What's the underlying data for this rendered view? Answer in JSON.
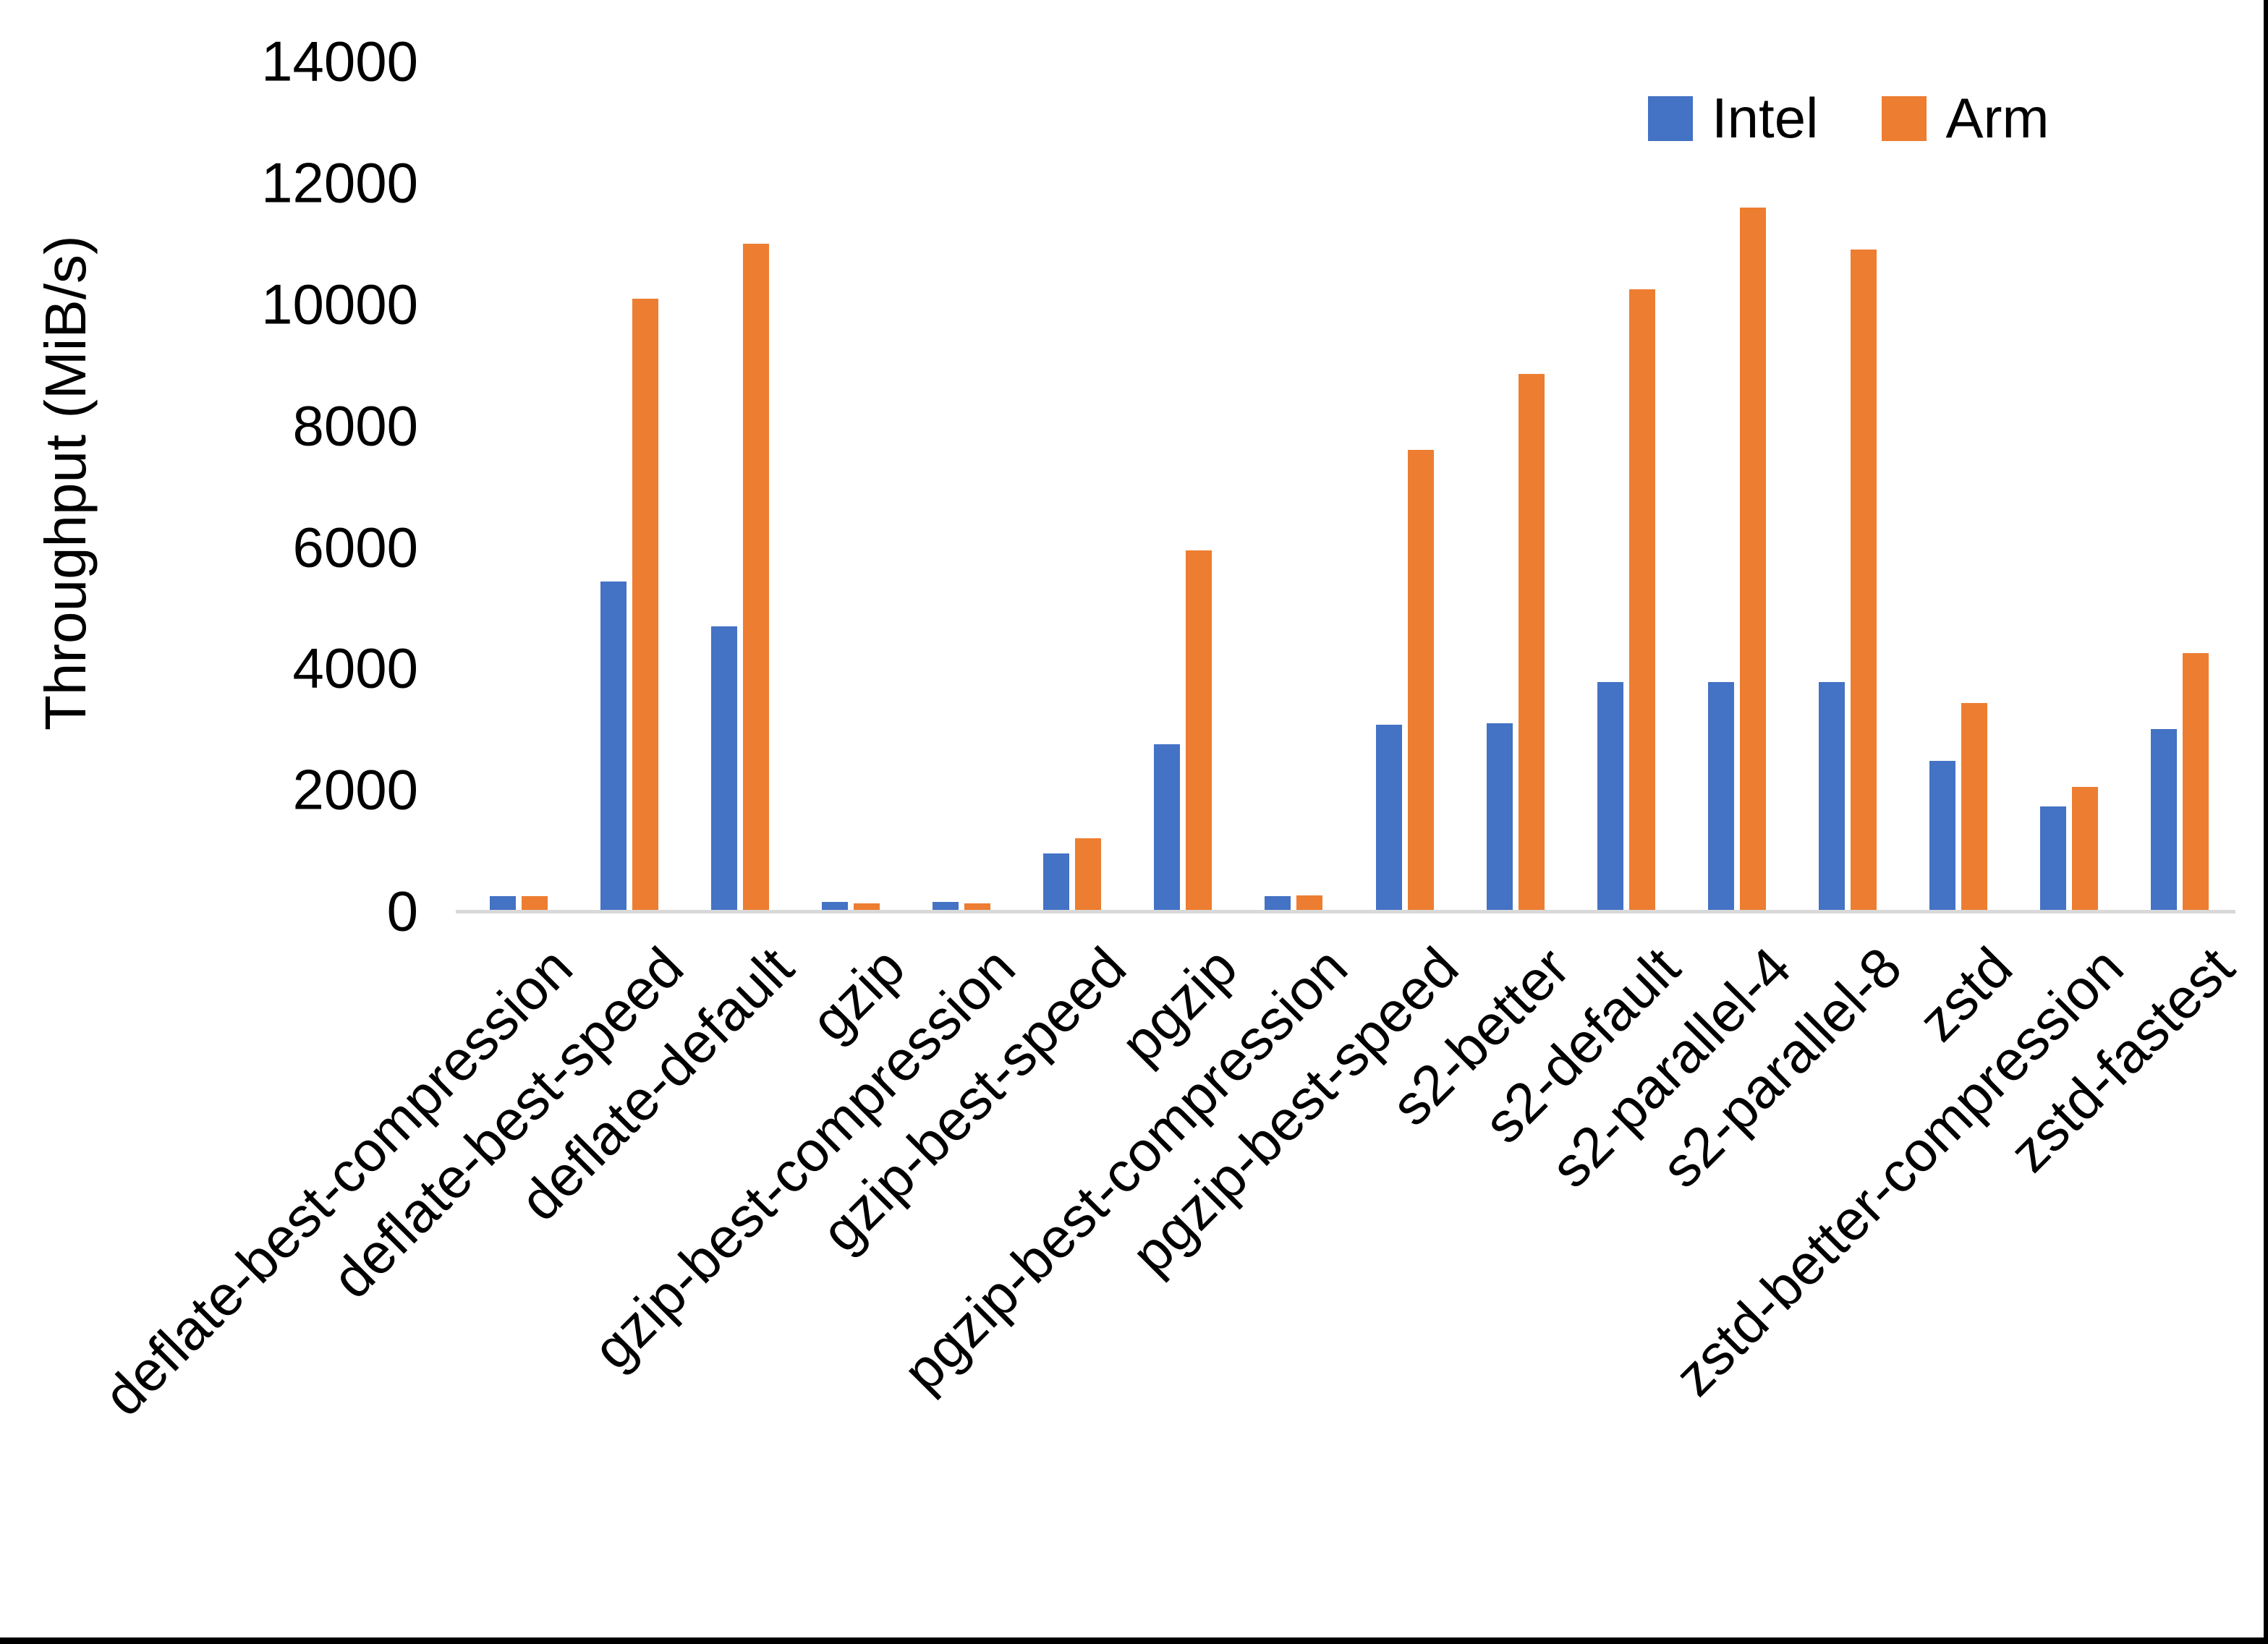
{
  "chart_data": {
    "type": "bar",
    "title": "",
    "xlabel": "",
    "ylabel": "Throughput (MiB/s)",
    "ylim": [
      0,
      14000
    ],
    "yticks": [
      0,
      2000,
      4000,
      6000,
      8000,
      10000,
      12000,
      14000
    ],
    "grid": false,
    "legend_position": "top-right",
    "axis_line_color": "#D9D9D9",
    "categories": [
      "deflate-best-compression",
      "deflate-best-speed",
      "deflate-default",
      "gzip",
      "gzip-best-compression",
      "gzip-best-speed",
      "pgzip",
      "pgzip-best-compression",
      "pgzip-best-speed",
      "s2-better",
      "s2-default",
      "s2-parallel-4",
      "s2-parallel-8",
      "zstd",
      "zstd-better-compression",
      "zstd-fastest"
    ],
    "series": [
      {
        "name": "Intel",
        "color": "#4472C4",
        "values": [
          250,
          5430,
          4700,
          150,
          150,
          950,
          2750,
          250,
          3080,
          3100,
          3780,
          3780,
          3780,
          2480,
          1730,
          3000
        ]
      },
      {
        "name": "Arm",
        "color": "#ED7D31",
        "values": [
          250,
          10100,
          11000,
          130,
          130,
          1200,
          5950,
          260,
          7600,
          8850,
          10250,
          11600,
          10900,
          3430,
          2050,
          4250
        ]
      }
    ]
  },
  "frame": {
    "background": "#FFFFFF",
    "border_color": "#000000"
  }
}
